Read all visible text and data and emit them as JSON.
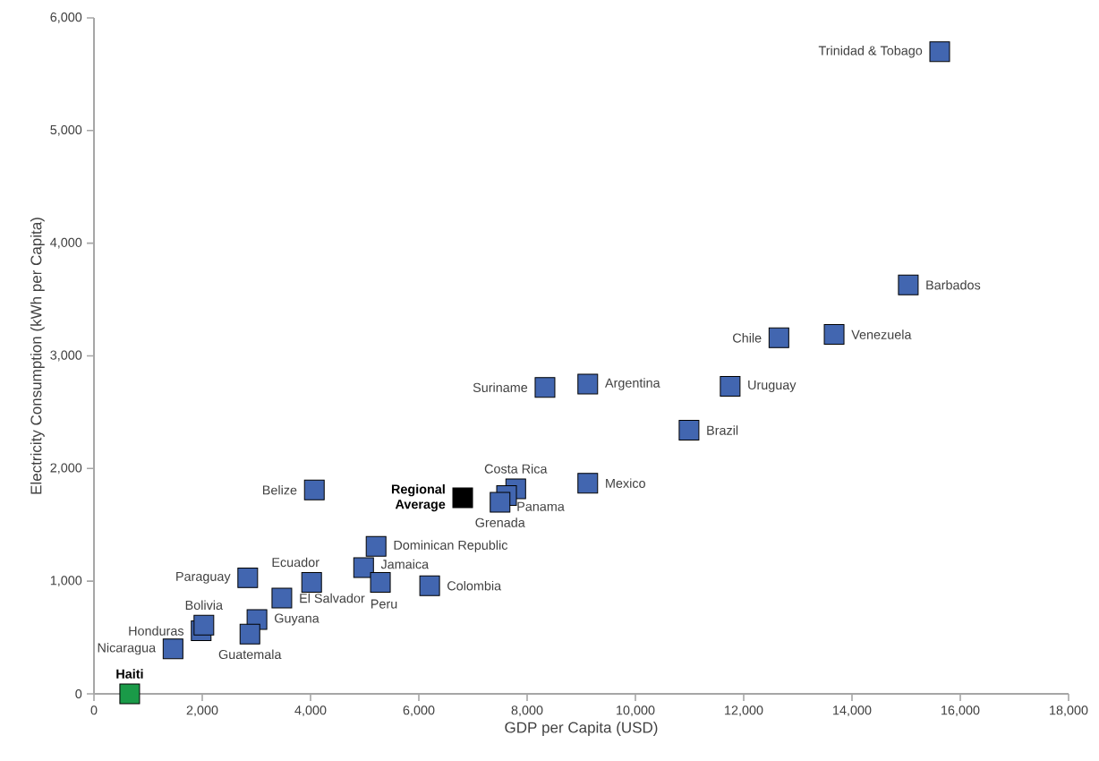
{
  "chart_data": {
    "type": "scatter",
    "xlabel": "GDP per Capita (USD)",
    "ylabel": "Electricity Consumption (kWh per Capita)",
    "marker": "square",
    "xlim": [
      0,
      18000
    ],
    "ylim": [
      0,
      6000
    ],
    "xticks": [
      {
        "value": 0,
        "label": "0"
      },
      {
        "value": 2000,
        "label": "2,000"
      },
      {
        "value": 4000,
        "label": "4,000"
      },
      {
        "value": 6000,
        "label": "6,000"
      },
      {
        "value": 8000,
        "label": "8,000"
      },
      {
        "value": 10000,
        "label": "10,000"
      },
      {
        "value": 12000,
        "label": "12,000"
      },
      {
        "value": 14000,
        "label": "14,000"
      },
      {
        "value": 16000,
        "label": "16,000"
      },
      {
        "value": 18000,
        "label": "18,000"
      }
    ],
    "yticks": [
      {
        "value": 0,
        "label": "0"
      },
      {
        "value": 1000,
        "label": "1,000"
      },
      {
        "value": 2000,
        "label": "2,000"
      },
      {
        "value": 3000,
        "label": "3,000"
      },
      {
        "value": 4000,
        "label": "4,000"
      },
      {
        "value": 5000,
        "label": "5,000"
      },
      {
        "value": 6000,
        "label": "6,000"
      }
    ],
    "series": [
      {
        "color": "#4266b0",
        "x": [
          15620,
          15040,
          13670,
          12650,
          11750,
          9120,
          8330,
          10990,
          9120,
          7790,
          7620,
          7500,
          4070,
          5210,
          4980,
          5290,
          6200,
          4020,
          3470,
          2840,
          3010,
          2880,
          1980,
          2030,
          1460
        ],
        "values": [
          5700,
          3630,
          3190,
          3160,
          2730,
          2750,
          2720,
          2340,
          1870,
          1820,
          1760,
          1700,
          1810,
          1310,
          1120,
          990,
          960,
          990,
          850,
          1030,
          660,
          530,
          560,
          610,
          400
        ]
      },
      {
        "name": "Regional Average",
        "color": "#000000",
        "x": [
          6810
        ],
        "values": [
          1740
        ]
      },
      {
        "name": "Haiti",
        "color": "#1a9a48",
        "x": [
          660
        ],
        "values": [
          0
        ]
      }
    ],
    "annotations": [
      {
        "text": "Trinidad & Tobago",
        "x": 15620,
        "y": 5700
      },
      {
        "text": "Barbados",
        "x": 15040,
        "y": 3630
      },
      {
        "text": "Venezuela",
        "x": 13670,
        "y": 3190
      },
      {
        "text": "Chile",
        "x": 12650,
        "y": 3160
      },
      {
        "text": "Uruguay",
        "x": 11750,
        "y": 2730
      },
      {
        "text": "Argentina",
        "x": 9120,
        "y": 2750
      },
      {
        "text": "Suriname",
        "x": 8330,
        "y": 2720
      },
      {
        "text": "Brazil",
        "x": 10990,
        "y": 2340
      },
      {
        "text": "Mexico",
        "x": 9120,
        "y": 1870
      },
      {
        "text": "Costa Rica",
        "x": 7790,
        "y": 1820
      },
      {
        "text": "Panama",
        "x": 7620,
        "y": 1760
      },
      {
        "text": "Grenada",
        "x": 7500,
        "y": 1700
      },
      {
        "text": "Belize",
        "x": 4070,
        "y": 1810
      },
      {
        "text": "Dominican Republic",
        "x": 5210,
        "y": 1310
      },
      {
        "text": "Jamaica",
        "x": 4980,
        "y": 1120
      },
      {
        "text": "Peru",
        "x": 5290,
        "y": 990
      },
      {
        "text": "Colombia",
        "x": 6200,
        "y": 960
      },
      {
        "text": "Ecuador",
        "x": 4020,
        "y": 990
      },
      {
        "text": "El Salvador",
        "x": 3470,
        "y": 850
      },
      {
        "text": "Paraguay",
        "x": 2840,
        "y": 1030
      },
      {
        "text": "Guyana",
        "x": 3010,
        "y": 660
      },
      {
        "text": "Guatemala",
        "x": 2880,
        "y": 530
      },
      {
        "text": "Honduras",
        "x": 1980,
        "y": 560
      },
      {
        "text": "Bolivia",
        "x": 2030,
        "y": 610
      },
      {
        "text": "Nicaragua",
        "x": 1460,
        "y": 400
      }
    ]
  }
}
